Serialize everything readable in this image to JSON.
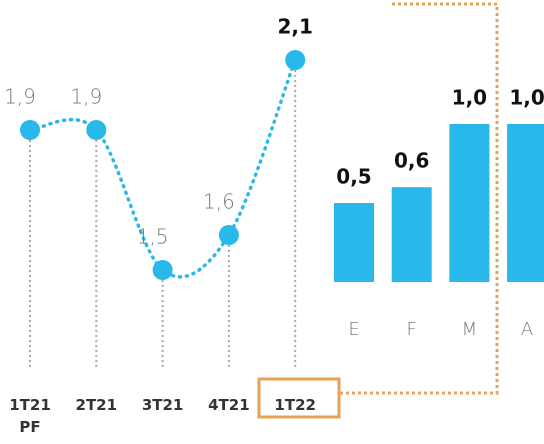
{
  "chart_data": [
    {
      "type": "line",
      "categories": [
        "1T21 PF",
        "2T21",
        "3T21",
        "4T21",
        "1T22"
      ],
      "values": [
        1.9,
        1.9,
        1.5,
        1.6,
        2.1
      ],
      "value_labels": [
        "1,9",
        "1,9",
        "1,5",
        "1,6",
        "2,1"
      ],
      "color": "#29b8ea"
    },
    {
      "type": "bar",
      "categories": [
        "E",
        "F",
        "M",
        "A"
      ],
      "values": [
        0.5,
        0.6,
        1.0,
        1.0
      ],
      "value_labels": [
        "0,5",
        "0,6",
        "1,0",
        "1,0"
      ],
      "color": "#29b8ea"
    }
  ]
}
